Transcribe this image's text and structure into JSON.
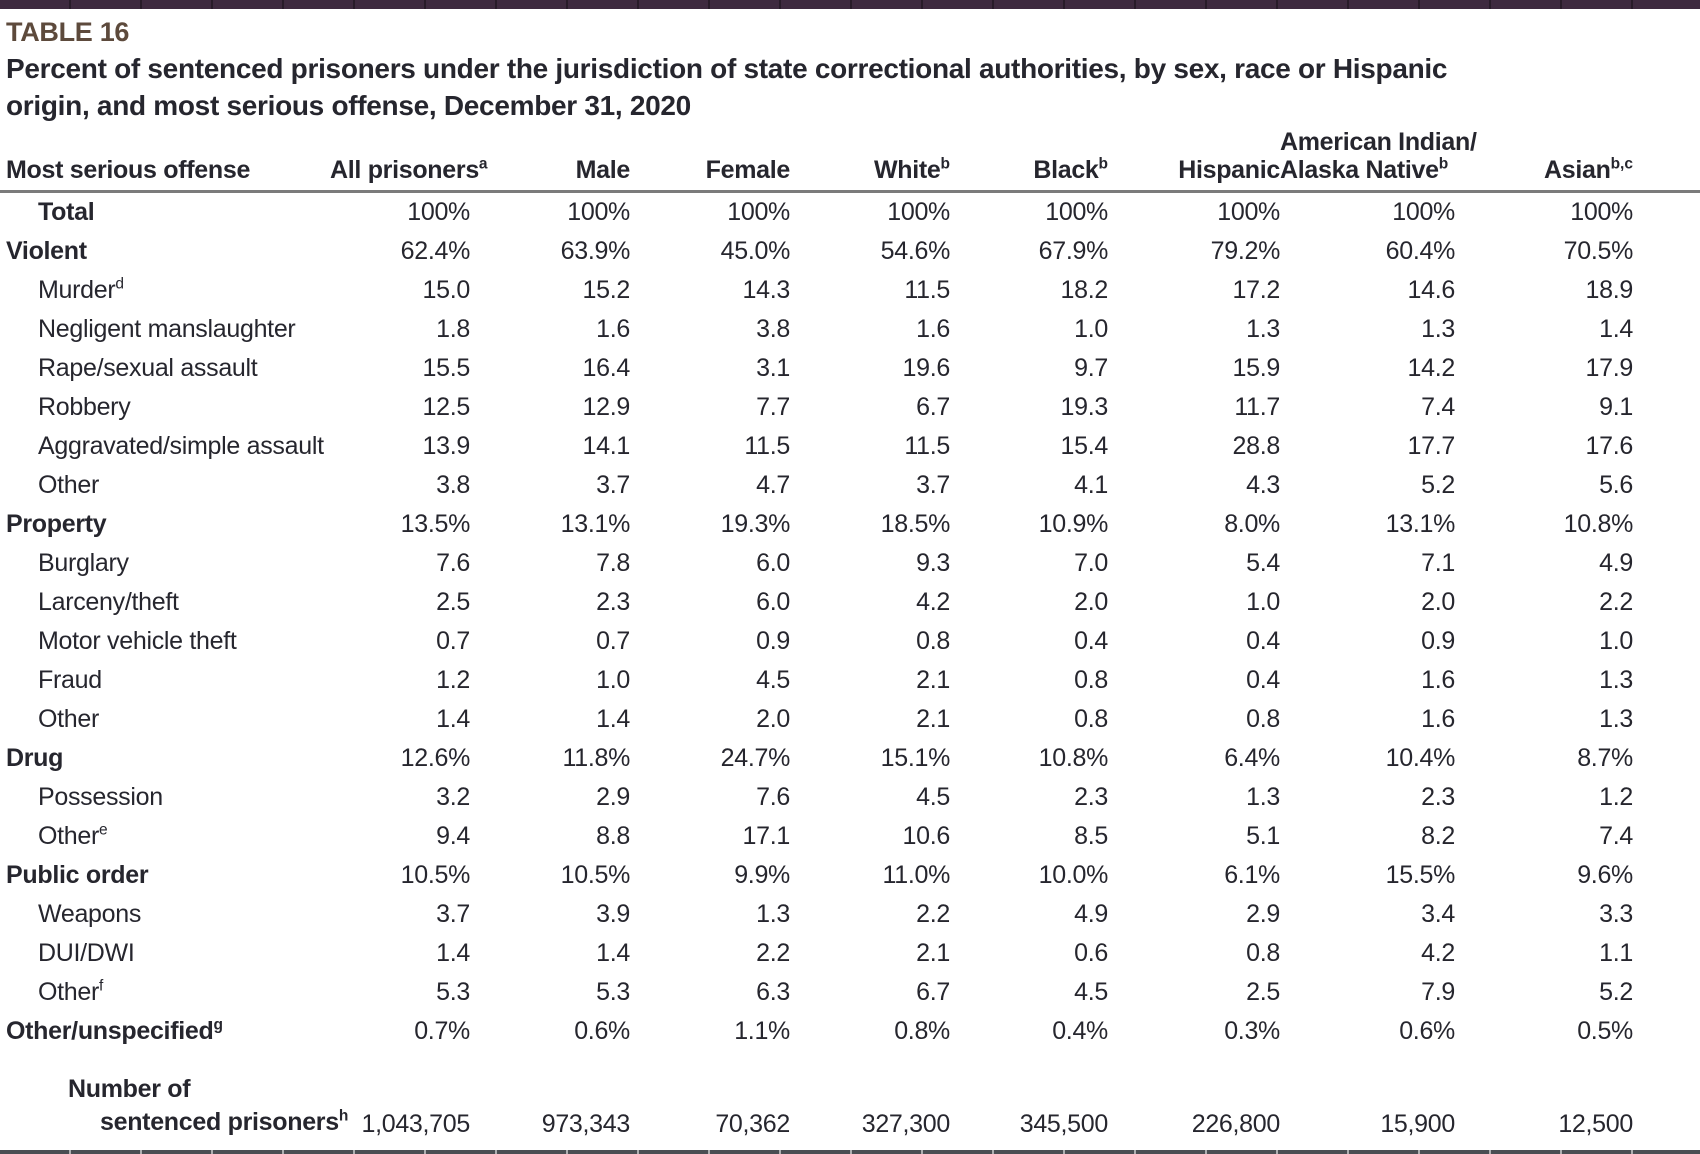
{
  "header": {
    "table_label": "TABLE 16",
    "title_line1": "Percent of sentenced prisoners under the jurisdiction of state correctional authorities, by sex, race or Hispanic",
    "title_line2": "origin, and most serious offense, December 31, 2020"
  },
  "colors": {
    "top_bar": "#3e2a3f",
    "table_label": "#5d4a3c",
    "text": "#26262e",
    "header_rule": "#7b7b7b",
    "bottom_rule": "#4a4e53"
  },
  "table": {
    "columns": [
      {
        "line1": "Most serious offense"
      },
      {
        "line1": "All prisoners",
        "sup": "a"
      },
      {
        "line1": "Male"
      },
      {
        "line1": "Female"
      },
      {
        "line1": "White",
        "sup": "b"
      },
      {
        "line1": "Black",
        "sup": "b"
      },
      {
        "line1": "Hispanic"
      },
      {
        "line1": "American Indian/",
        "line2": "Alaska Native",
        "sup": "b"
      },
      {
        "line1": "Asian",
        "sup": "b,c"
      }
    ],
    "rows": [
      {
        "label": "Total",
        "sup": "",
        "indent": 1,
        "section": true,
        "values": [
          "100%",
          "100%",
          "100%",
          "100%",
          "100%",
          "100%",
          "100%",
          "100%"
        ]
      },
      {
        "label": "Violent",
        "sup": "",
        "indent": 0,
        "section": true,
        "values": [
          "62.4%",
          "63.9%",
          "45.0%",
          "54.6%",
          "67.9%",
          "79.2%",
          "60.4%",
          "70.5%"
        ]
      },
      {
        "label": "Murder",
        "sup": "d",
        "indent": 1,
        "section": false,
        "values": [
          "15.0",
          "15.2",
          "14.3",
          "11.5",
          "18.2",
          "17.2",
          "14.6",
          "18.9"
        ]
      },
      {
        "label": "Negligent manslaughter",
        "sup": "",
        "indent": 1,
        "section": false,
        "values": [
          "1.8",
          "1.6",
          "3.8",
          "1.6",
          "1.0",
          "1.3",
          "1.3",
          "1.4"
        ]
      },
      {
        "label": "Rape/sexual assault",
        "sup": "",
        "indent": 1,
        "section": false,
        "values": [
          "15.5",
          "16.4",
          "3.1",
          "19.6",
          "9.7",
          "15.9",
          "14.2",
          "17.9"
        ]
      },
      {
        "label": "Robbery",
        "sup": "",
        "indent": 1,
        "section": false,
        "values": [
          "12.5",
          "12.9",
          "7.7",
          "6.7",
          "19.3",
          "11.7",
          "7.4",
          "9.1"
        ]
      },
      {
        "label": "Aggravated/simple assault",
        "sup": "",
        "indent": 1,
        "section": false,
        "values": [
          "13.9",
          "14.1",
          "11.5",
          "11.5",
          "15.4",
          "28.8",
          "17.7",
          "17.6"
        ]
      },
      {
        "label": "Other",
        "sup": "",
        "indent": 1,
        "section": false,
        "values": [
          "3.8",
          "3.7",
          "4.7",
          "3.7",
          "4.1",
          "4.3",
          "5.2",
          "5.6"
        ]
      },
      {
        "label": "Property",
        "sup": "",
        "indent": 0,
        "section": true,
        "values": [
          "13.5%",
          "13.1%",
          "19.3%",
          "18.5%",
          "10.9%",
          "8.0%",
          "13.1%",
          "10.8%"
        ]
      },
      {
        "label": "Burglary",
        "sup": "",
        "indent": 1,
        "section": false,
        "values": [
          "7.6",
          "7.8",
          "6.0",
          "9.3",
          "7.0",
          "5.4",
          "7.1",
          "4.9"
        ]
      },
      {
        "label": "Larceny/theft",
        "sup": "",
        "indent": 1,
        "section": false,
        "values": [
          "2.5",
          "2.3",
          "6.0",
          "4.2",
          "2.0",
          "1.0",
          "2.0",
          "2.2"
        ]
      },
      {
        "label": "Motor vehicle theft",
        "sup": "",
        "indent": 1,
        "section": false,
        "values": [
          "0.7",
          "0.7",
          "0.9",
          "0.8",
          "0.4",
          "0.4",
          "0.9",
          "1.0"
        ]
      },
      {
        "label": "Fraud",
        "sup": "",
        "indent": 1,
        "section": false,
        "values": [
          "1.2",
          "1.0",
          "4.5",
          "2.1",
          "0.8",
          "0.4",
          "1.6",
          "1.3"
        ]
      },
      {
        "label": "Other",
        "sup": "",
        "indent": 1,
        "section": false,
        "values": [
          "1.4",
          "1.4",
          "2.0",
          "2.1",
          "0.8",
          "0.8",
          "1.6",
          "1.3"
        ]
      },
      {
        "label": "Drug",
        "sup": "",
        "indent": 0,
        "section": true,
        "values": [
          "12.6%",
          "11.8%",
          "24.7%",
          "15.1%",
          "10.8%",
          "6.4%",
          "10.4%",
          "8.7%"
        ]
      },
      {
        "label": "Possession",
        "sup": "",
        "indent": 1,
        "section": false,
        "values": [
          "3.2",
          "2.9",
          "7.6",
          "4.5",
          "2.3",
          "1.3",
          "2.3",
          "1.2"
        ]
      },
      {
        "label": "Other",
        "sup": "e",
        "indent": 1,
        "section": false,
        "values": [
          "9.4",
          "8.8",
          "17.1",
          "10.6",
          "8.5",
          "5.1",
          "8.2",
          "7.4"
        ]
      },
      {
        "label": "Public order",
        "sup": "",
        "indent": 0,
        "section": true,
        "values": [
          "10.5%",
          "10.5%",
          "9.9%",
          "11.0%",
          "10.0%",
          "6.1%",
          "15.5%",
          "9.6%"
        ]
      },
      {
        "label": "Weapons",
        "sup": "",
        "indent": 1,
        "section": false,
        "values": [
          "3.7",
          "3.9",
          "1.3",
          "2.2",
          "4.9",
          "2.9",
          "3.4",
          "3.3"
        ]
      },
      {
        "label": "DUI/DWI",
        "sup": "",
        "indent": 1,
        "section": false,
        "values": [
          "1.4",
          "1.4",
          "2.2",
          "2.1",
          "0.6",
          "0.8",
          "4.2",
          "1.1"
        ]
      },
      {
        "label": "Other",
        "sup": "f",
        "indent": 1,
        "section": false,
        "values": [
          "5.3",
          "5.3",
          "6.3",
          "6.7",
          "4.5",
          "2.5",
          "7.9",
          "5.2"
        ]
      },
      {
        "label": "Other/unspecified",
        "sup": "g",
        "indent": 0,
        "section": true,
        "values": [
          "0.7%",
          "0.6%",
          "1.1%",
          "0.8%",
          "0.4%",
          "0.3%",
          "0.6%",
          "0.5%"
        ]
      }
    ],
    "footer": {
      "line1": "Number of",
      "line2": "sentenced prisoners",
      "sup": "h",
      "values": [
        "1,043,705",
        "973,343",
        "70,362",
        "327,300",
        "345,500",
        "226,800",
        "15,900",
        "12,500"
      ]
    }
  }
}
